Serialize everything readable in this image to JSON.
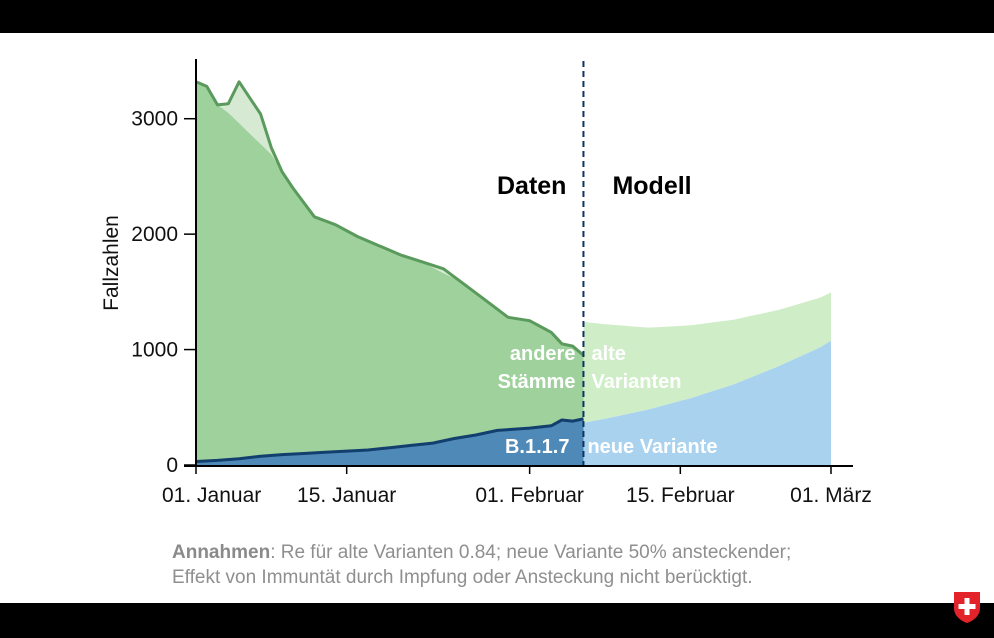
{
  "colors": {
    "old_data_fill": "#9fd19c",
    "old_data_band": "#d6ead3",
    "old_data_line": "#5a9a5c",
    "new_data_fill": "#4e89b8",
    "new_data_line": "#123f6e",
    "old_model_fill": "#cfeec8",
    "new_model_fill": "#a9d2ee",
    "divider": "#0d3460",
    "swiss_red": "#e2232a"
  },
  "chart_data": {
    "type": "area",
    "title": "",
    "xlabel": "",
    "ylabel": "Fallzahlen",
    "ylim": [
      0,
      3500
    ],
    "yticks": [
      0,
      1000,
      2000,
      3000
    ],
    "xlim": [
      "2021-01-01",
      "2021-03-01"
    ],
    "xticks": [
      {
        "date": "2021-01-01",
        "label": "01. Januar"
      },
      {
        "date": "2021-01-15",
        "label": "15. Januar"
      },
      {
        "date": "2021-02-01",
        "label": "01. Februar"
      },
      {
        "date": "2021-02-15",
        "label": "15. Februar"
      },
      {
        "date": "2021-03-01",
        "label": "01. März"
      }
    ],
    "split_date": "2021-02-06",
    "section_labels": {
      "data": "Daten",
      "model": "Modell"
    },
    "region_labels": {
      "data_old": [
        "andere",
        "Stämme"
      ],
      "data_new": "B.1.1.7",
      "model_old": [
        "alte",
        "Varianten"
      ],
      "model_new": "neue Variante"
    },
    "series": [
      {
        "name": "andere Stämme",
        "x": [
          "2021-01-01",
          "2021-01-02",
          "2021-01-03",
          "2021-01-04",
          "2021-01-05",
          "2021-01-06",
          "2021-01-07",
          "2021-01-08",
          "2021-01-09",
          "2021-01-10",
          "2021-01-12",
          "2021-01-14",
          "2021-01-16",
          "2021-01-18",
          "2021-01-20",
          "2021-01-22",
          "2021-01-24",
          "2021-01-26",
          "2021-01-28",
          "2021-01-30",
          "2021-02-01",
          "2021-02-03",
          "2021-02-04",
          "2021-02-05",
          "2021-02-06"
        ],
        "values": [
          3320,
          3280,
          3120,
          3130,
          3320,
          3180,
          3040,
          2750,
          2540,
          2400,
          2150,
          2080,
          1980,
          1900,
          1820,
          1760,
          1700,
          1560,
          1420,
          1280,
          1250,
          1150,
          1050,
          1030,
          950
        ]
      },
      {
        "name": "B.1.1.7",
        "x": [
          "2021-01-01",
          "2021-01-03",
          "2021-01-05",
          "2021-01-07",
          "2021-01-09",
          "2021-01-11",
          "2021-01-13",
          "2021-01-15",
          "2021-01-17",
          "2021-01-19",
          "2021-01-21",
          "2021-01-23",
          "2021-01-25",
          "2021-01-27",
          "2021-01-29",
          "2021-02-01",
          "2021-02-03",
          "2021-02-04",
          "2021-02-05",
          "2021-02-06"
        ],
        "values": [
          30,
          40,
          55,
          75,
          90,
          100,
          110,
          120,
          130,
          150,
          170,
          190,
          230,
          260,
          300,
          320,
          340,
          390,
          380,
          400
        ]
      },
      {
        "name": "alte Varianten",
        "x": [
          "2021-01-01",
          "2021-01-04",
          "2021-01-08",
          "2021-01-12",
          "2021-01-16",
          "2021-01-20",
          "2021-01-24",
          "2021-01-28",
          "2021-02-01",
          "2021-02-04",
          "2021-02-08",
          "2021-02-12",
          "2021-02-16",
          "2021-02-20",
          "2021-02-24",
          "2021-02-28",
          "2021-03-01"
        ],
        "values": [
          3040,
          2720,
          2360,
          2040,
          1760,
          1530,
          1330,
          1160,
          1030,
          930,
          820,
          710,
          630,
          560,
          490,
          430,
          420
        ]
      },
      {
        "name": "neue Variante",
        "x": [
          "2021-02-04",
          "2021-02-08",
          "2021-02-12",
          "2021-02-16",
          "2021-02-20",
          "2021-02-24",
          "2021-02-28",
          "2021-03-01"
        ],
        "values": [
          330,
          400,
          480,
          580,
          700,
          850,
          1020,
          1075
        ]
      }
    ]
  },
  "annotation": {
    "label": "Annahmen",
    "line1": ": Re für alte Varianten 0.84; neue Variante 50% ansteckender;",
    "line2": "Effekt von Immuntät durch Impfung oder Ansteckung nicht berücktigt."
  },
  "logo_icon": "swiss-cross-shield-icon"
}
